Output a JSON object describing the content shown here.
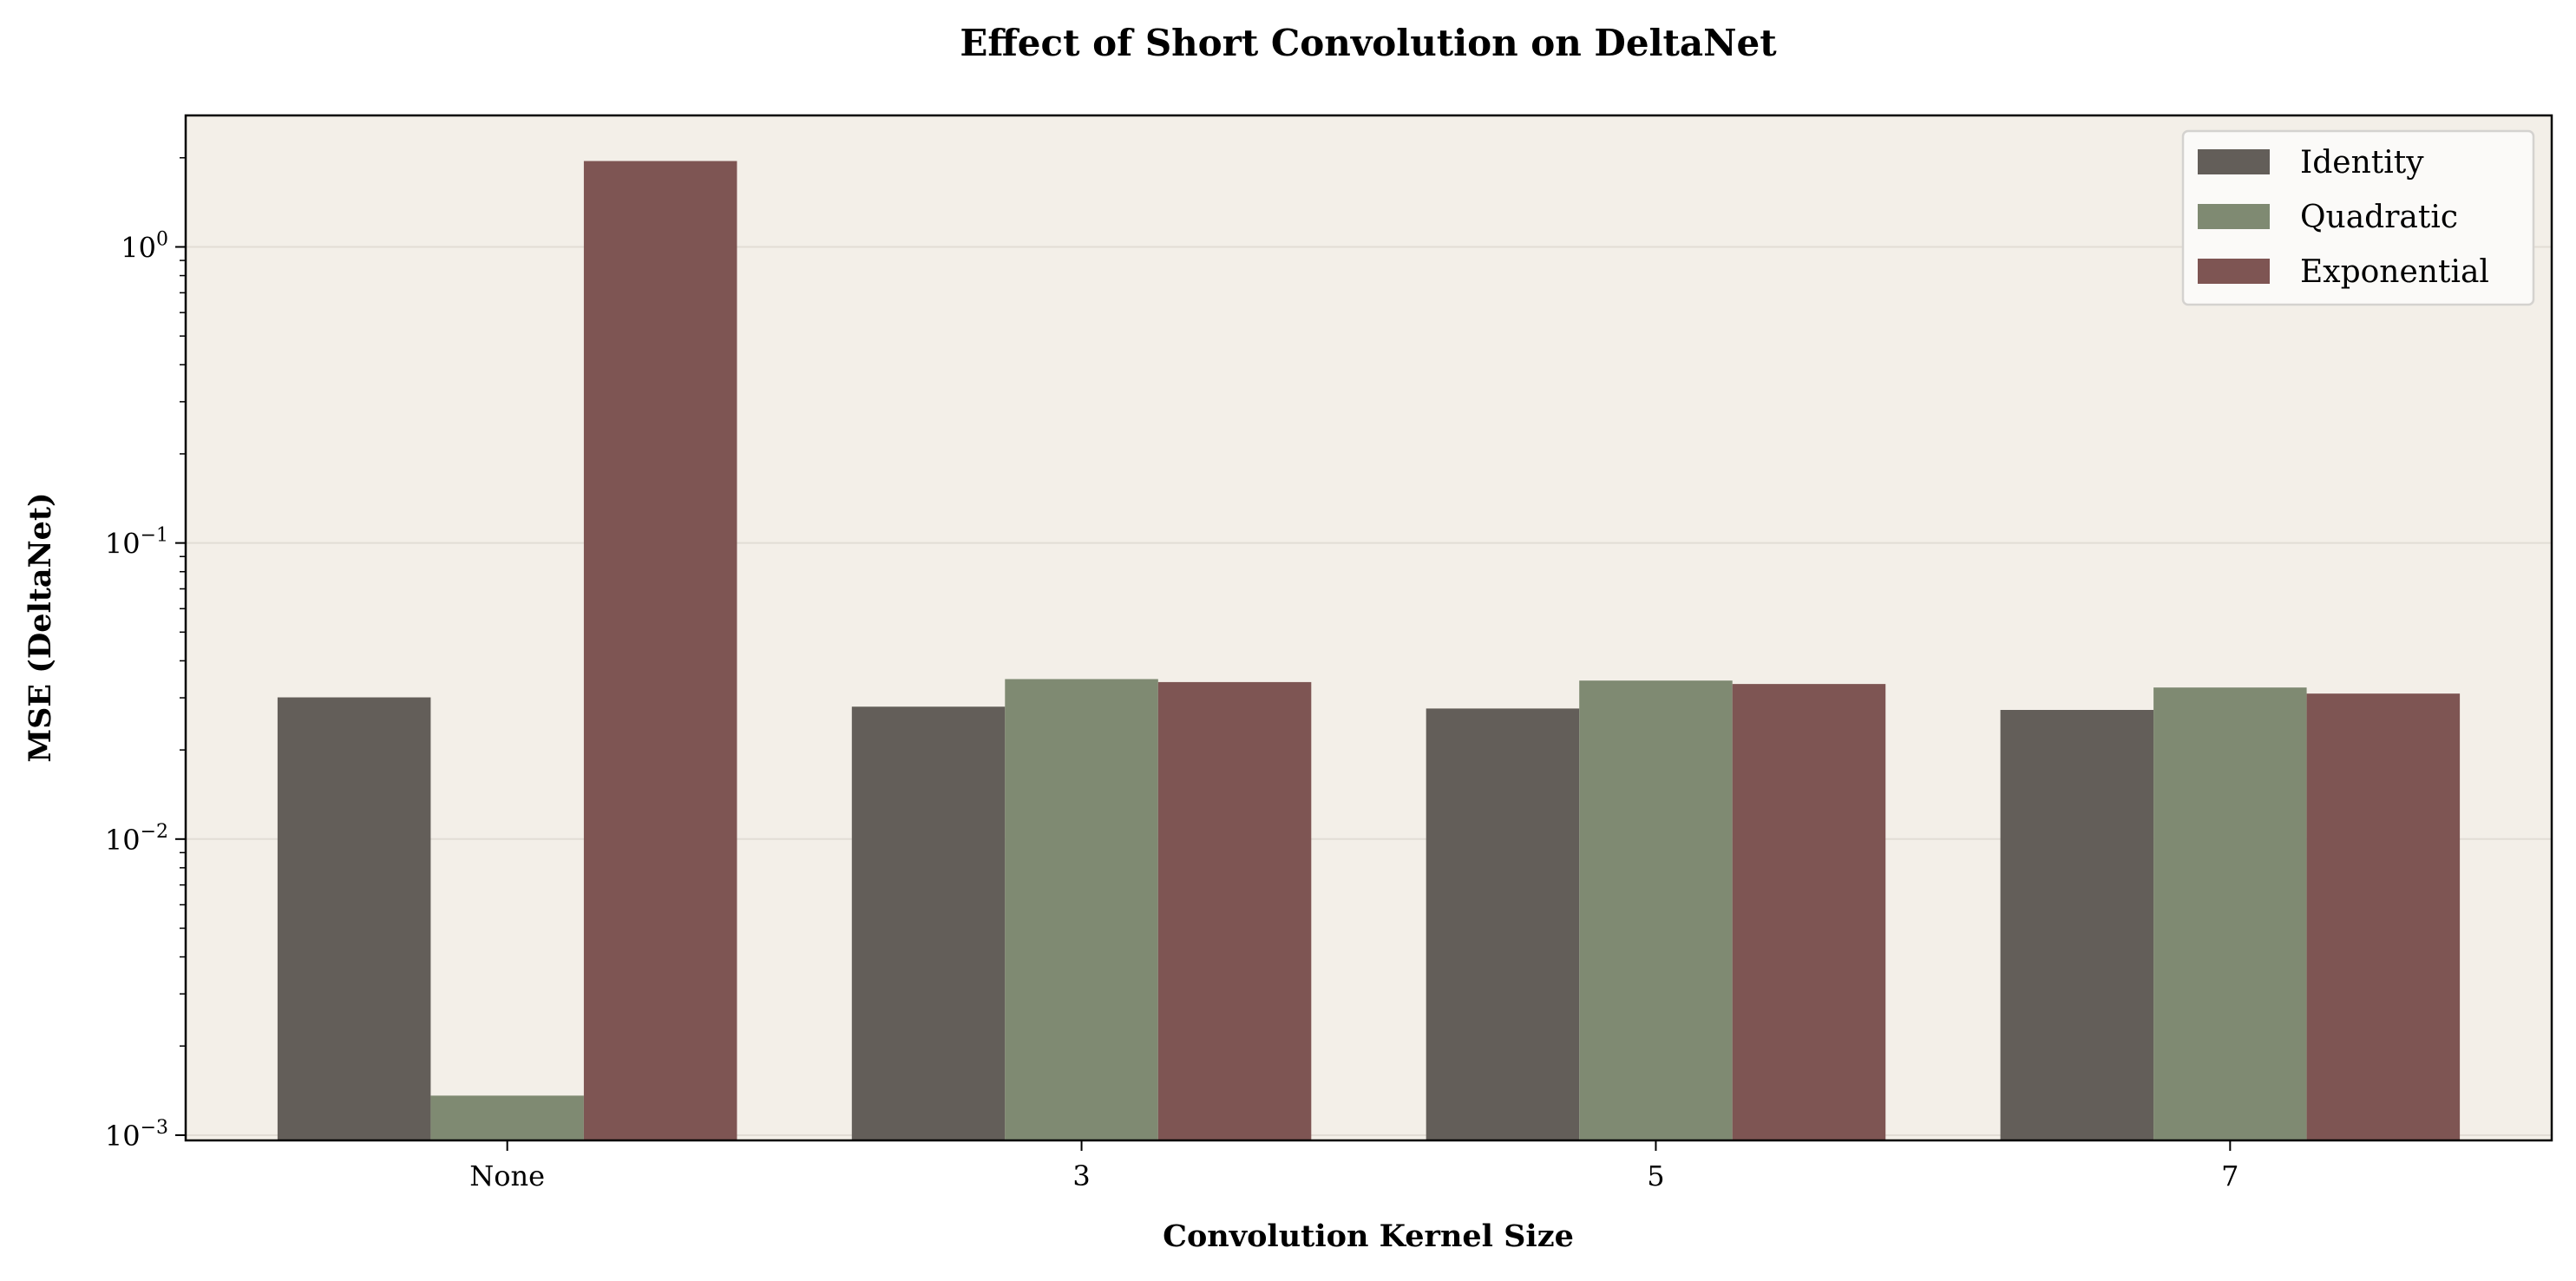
{
  "chart_data": {
    "type": "bar",
    "title": "Effect of Short Convolution on DeltaNet",
    "xlabel": "Convolution Kernel Size",
    "ylabel": "MSE (DeltaNet)",
    "yscale": "log",
    "ylim": [
      0.00096,
      2.78
    ],
    "yticks": [
      {
        "value": 0.001,
        "base": "10",
        "exp": "−3"
      },
      {
        "value": 0.01,
        "base": "10",
        "exp": "−2"
      },
      {
        "value": 0.1,
        "base": "10",
        "exp": "−1"
      },
      {
        "value": 1,
        "base": "10",
        "exp": "0"
      }
    ],
    "categories": [
      "None",
      "3",
      "5",
      "7"
    ],
    "series": [
      {
        "name": "Identity",
        "color": "#635e59",
        "values": [
          0.0301,
          0.028,
          0.0276,
          0.0273
        ]
      },
      {
        "name": "Quadratic",
        "color": "#7f8a72",
        "values": [
          0.00136,
          0.0347,
          0.0343,
          0.0325
        ]
      },
      {
        "name": "Exponential",
        "color": "#7e5553",
        "values": [
          1.95,
          0.0339,
          0.0334,
          0.031
        ]
      }
    ],
    "grid": "y-major",
    "legend": "top-right",
    "background": "#f3efe8"
  }
}
